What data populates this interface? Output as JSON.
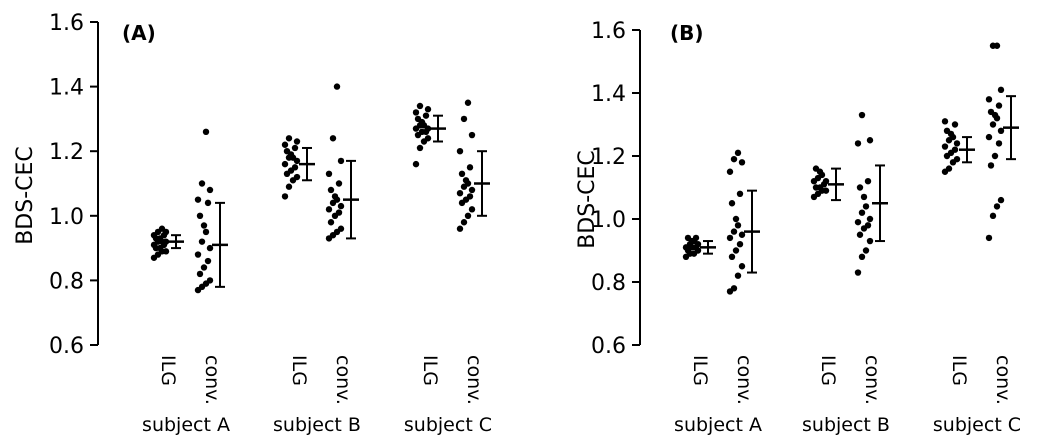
{
  "chart_data": [
    {
      "type": "scatter",
      "panel_label": "(A)",
      "ylabel": "BDS-CEC",
      "ylim": [
        0.6,
        1.6
      ],
      "yticks": [
        "0.6",
        "0.8",
        "1.0",
        "1.2",
        "1.4",
        "1.6"
      ],
      "grid": false,
      "groups": [
        {
          "name": "subject A",
          "series": [
            {
              "category": "ILG",
              "values": [
                0.87,
                0.88,
                0.89,
                0.89,
                0.9,
                0.9,
                0.91,
                0.91,
                0.92,
                0.92,
                0.92,
                0.93,
                0.93,
                0.94,
                0.94,
                0.95,
                0.95,
                0.96
              ],
              "mean": 0.92,
              "error": 0.02
            },
            {
              "category": "conv.",
              "values": [
                0.77,
                0.78,
                0.79,
                0.8,
                0.82,
                0.84,
                0.86,
                0.88,
                0.9,
                0.92,
                0.95,
                0.97,
                1.0,
                1.04,
                1.05,
                1.08,
                1.1,
                1.26
              ],
              "mean": 0.91,
              "error": 0.13
            }
          ]
        },
        {
          "name": "subject B",
          "series": [
            {
              "category": "ILG",
              "values": [
                1.06,
                1.09,
                1.11,
                1.12,
                1.13,
                1.14,
                1.15,
                1.16,
                1.17,
                1.18,
                1.18,
                1.19,
                1.2,
                1.21,
                1.22,
                1.23,
                1.24
              ],
              "mean": 1.16,
              "error": 0.05
            },
            {
              "category": "conv.",
              "values": [
                0.93,
                0.94,
                0.95,
                0.96,
                0.98,
                1.0,
                1.01,
                1.02,
                1.03,
                1.04,
                1.05,
                1.06,
                1.08,
                1.1,
                1.13,
                1.17,
                1.24,
                1.4
              ],
              "mean": 1.05,
              "error": 0.12
            }
          ]
        },
        {
          "name": "subject C",
          "series": [
            {
              "category": "ILG",
              "values": [
                1.16,
                1.21,
                1.23,
                1.24,
                1.25,
                1.26,
                1.26,
                1.27,
                1.27,
                1.28,
                1.28,
                1.29,
                1.3,
                1.31,
                1.32,
                1.33,
                1.34
              ],
              "mean": 1.27,
              "error": 0.04
            },
            {
              "category": "conv.",
              "values": [
                0.96,
                0.98,
                1.0,
                1.02,
                1.04,
                1.05,
                1.06,
                1.07,
                1.08,
                1.09,
                1.1,
                1.11,
                1.13,
                1.15,
                1.2,
                1.25,
                1.3,
                1.35
              ],
              "mean": 1.1,
              "error": 0.1
            }
          ]
        }
      ]
    },
    {
      "type": "scatter",
      "panel_label": "(B)",
      "ylabel": "BDS-CEC",
      "ylim": [
        0.6,
        1.6
      ],
      "yticks": [
        "0.6",
        "0.8",
        "1.0",
        "1.2",
        "1.4",
        "1.6"
      ],
      "grid": false,
      "groups": [
        {
          "name": "subject A",
          "series": [
            {
              "category": "ILG",
              "values": [
                0.88,
                0.89,
                0.89,
                0.9,
                0.9,
                0.91,
                0.91,
                0.91,
                0.92,
                0.92,
                0.93,
                0.93,
                0.94,
                0.94
              ],
              "mean": 0.91,
              "error": 0.02
            },
            {
              "category": "conv.",
              "values": [
                0.77,
                0.78,
                0.82,
                0.85,
                0.88,
                0.9,
                0.92,
                0.94,
                0.95,
                0.96,
                0.98,
                1.0,
                1.05,
                1.08,
                1.15,
                1.18,
                1.19,
                1.21
              ],
              "mean": 0.96,
              "error": 0.13
            }
          ]
        },
        {
          "name": "subject B",
          "series": [
            {
              "category": "ILG",
              "values": [
                1.07,
                1.08,
                1.09,
                1.09,
                1.1,
                1.1,
                1.11,
                1.12,
                1.12,
                1.13,
                1.14,
                1.15,
                1.16
              ],
              "mean": 1.11,
              "error": 0.05
            },
            {
              "category": "conv.",
              "values": [
                0.83,
                0.88,
                0.9,
                0.93,
                0.95,
                0.97,
                0.98,
                0.99,
                1.0,
                1.02,
                1.04,
                1.07,
                1.1,
                1.12,
                1.24,
                1.25,
                1.33
              ],
              "mean": 1.05,
              "error": 0.12
            }
          ]
        },
        {
          "name": "subject C",
          "series": [
            {
              "category": "ILG",
              "values": [
                1.15,
                1.16,
                1.18,
                1.19,
                1.2,
                1.21,
                1.22,
                1.23,
                1.24,
                1.25,
                1.26,
                1.27,
                1.28,
                1.3,
                1.31
              ],
              "mean": 1.22,
              "error": 0.04
            },
            {
              "category": "conv.",
              "values": [
                0.94,
                1.01,
                1.04,
                1.06,
                1.17,
                1.2,
                1.24,
                1.26,
                1.28,
                1.3,
                1.32,
                1.33,
                1.34,
                1.36,
                1.38,
                1.41,
                1.55,
                1.55
              ],
              "mean": 1.29,
              "error": 0.1
            }
          ]
        }
      ]
    }
  ]
}
